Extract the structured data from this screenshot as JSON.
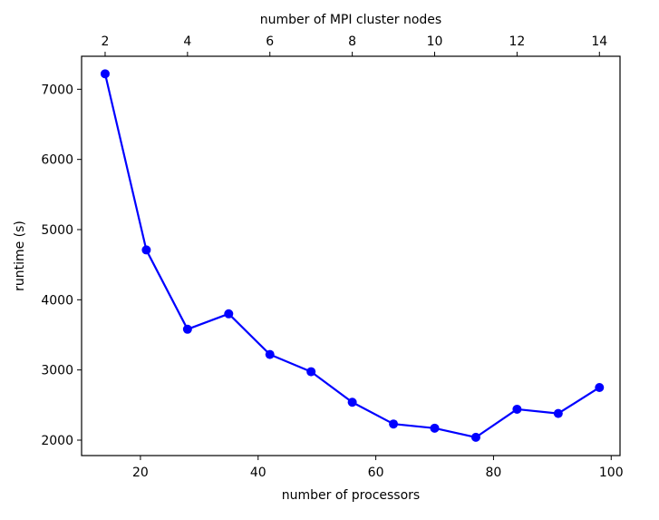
{
  "chart_data": {
    "type": "line",
    "xlabel": "number of processors",
    "ylabel": "runtime (s)",
    "x2label": "number of MPI cluster nodes",
    "xlim": [
      10,
      101.5
    ],
    "ylim": [
      1780,
      7470
    ],
    "x2lim": [
      1.4286,
      14.5
    ],
    "xticks": [
      20,
      40,
      60,
      80,
      100
    ],
    "yticks": [
      2000,
      3000,
      4000,
      5000,
      6000,
      7000
    ],
    "x2ticks": [
      2,
      4,
      6,
      8,
      10,
      12,
      14
    ],
    "grid": false,
    "series": [
      {
        "color": "#0000ff",
        "marker": "circle",
        "x": [
          14,
          21,
          28,
          35,
          42,
          49,
          56,
          63,
          70,
          77,
          84,
          91,
          98
        ],
        "y": [
          7220,
          4710,
          3580,
          3800,
          3220,
          2975,
          2540,
          2230,
          2170,
          2040,
          2440,
          2380,
          2750
        ]
      }
    ]
  }
}
